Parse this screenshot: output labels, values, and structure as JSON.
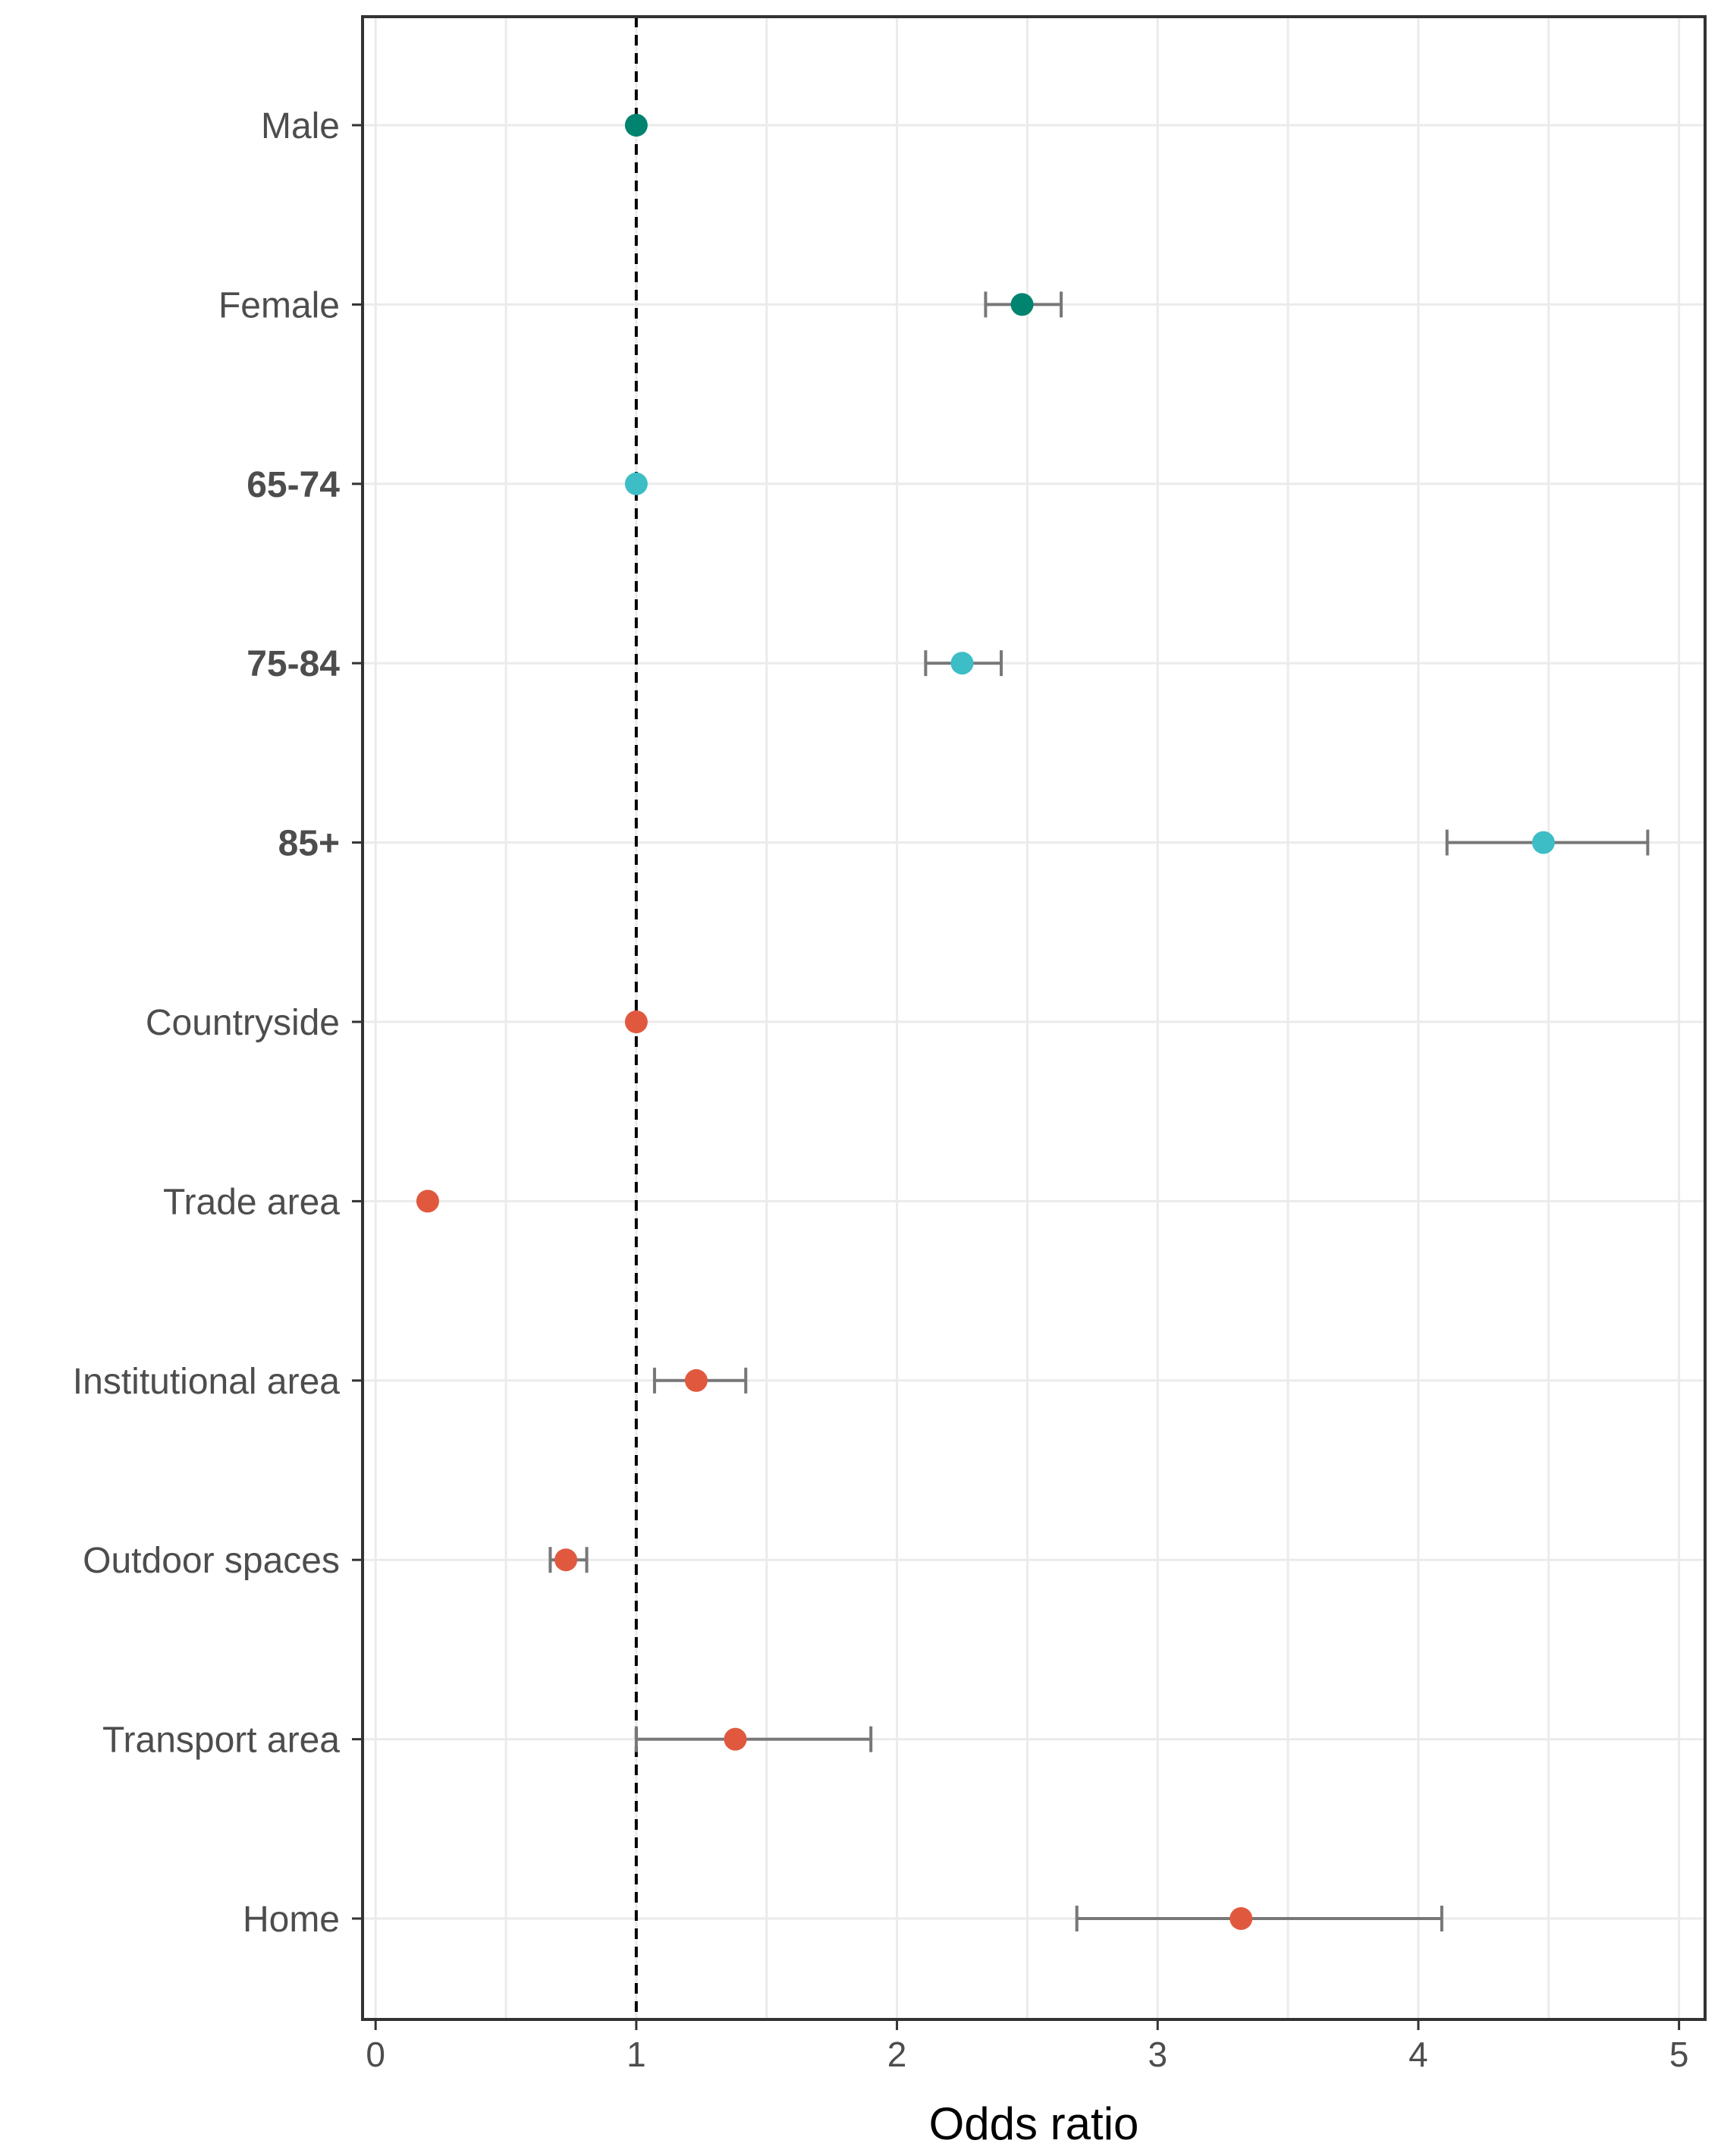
{
  "chart_data": {
    "type": "forest",
    "xlabel": "Odds ratio",
    "ylabel": "",
    "xlim": [
      -0.05,
      5.1
    ],
    "xticks": [
      0,
      1,
      2,
      3,
      4,
      5
    ],
    "xtick_labels": [
      "0",
      "1",
      "2",
      "3",
      "4",
      "5"
    ],
    "reference_line": 1,
    "grid": true,
    "colors": {
      "sex": "#00836f",
      "age": "#3dbdc6",
      "place": "#e0593f",
      "errorbar": "#777777",
      "grid": "#ebebeb",
      "panel_border": "#333333"
    },
    "rows": [
      {
        "label": "Male",
        "bold": false,
        "group": "sex",
        "estimate": 1.0,
        "lower": null,
        "upper": null
      },
      {
        "label": "Female",
        "bold": false,
        "group": "sex",
        "estimate": 2.48,
        "lower": 2.34,
        "upper": 2.63
      },
      {
        "label": "65-74",
        "bold": true,
        "group": "age",
        "estimate": 1.0,
        "lower": null,
        "upper": null
      },
      {
        "label": "75-84",
        "bold": true,
        "group": "age",
        "estimate": 2.25,
        "lower": 2.11,
        "upper": 2.4
      },
      {
        "label": "85+",
        "bold": true,
        "group": "age",
        "estimate": 4.48,
        "lower": 4.11,
        "upper": 4.88
      },
      {
        "label": "Countryside",
        "bold": false,
        "group": "place",
        "estimate": 1.0,
        "lower": null,
        "upper": null
      },
      {
        "label": "Trade area",
        "bold": false,
        "group": "place",
        "estimate": 0.2,
        "lower": null,
        "upper": null
      },
      {
        "label": "Institutional area",
        "bold": false,
        "group": "place",
        "estimate": 1.23,
        "lower": 1.07,
        "upper": 1.42
      },
      {
        "label": "Outdoor spaces",
        "bold": false,
        "group": "place",
        "estimate": 0.73,
        "lower": 0.67,
        "upper": 0.81
      },
      {
        "label": "Transport area",
        "bold": false,
        "group": "place",
        "estimate": 1.38,
        "lower": 1.0,
        "upper": 1.9
      },
      {
        "label": "Home",
        "bold": false,
        "group": "place",
        "estimate": 3.32,
        "lower": 2.69,
        "upper": 4.09
      }
    ]
  }
}
